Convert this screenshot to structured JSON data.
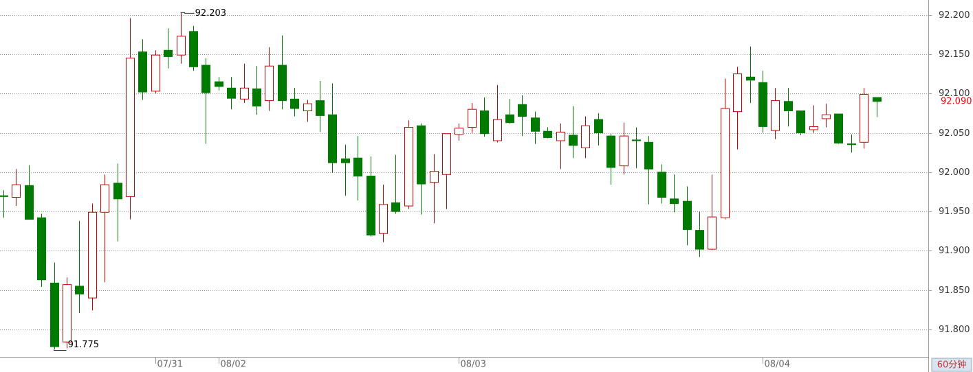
{
  "chart_data": {
    "type": "candlestick",
    "period": "60分钟",
    "categories": [
      null,
      null,
      null,
      null,
      null,
      null,
      null,
      null,
      null,
      null,
      null,
      null,
      "07/31",
      null,
      null,
      null,
      null,
      "08/02",
      null,
      null,
      null,
      null,
      null,
      null,
      null,
      null,
      null,
      null,
      null,
      null,
      null,
      null,
      null,
      null,
      null,
      null,
      "08/03",
      null,
      null,
      null,
      null,
      null,
      null,
      null,
      null,
      null,
      null,
      null,
      null,
      null,
      null,
      null,
      null,
      null,
      null,
      null,
      null,
      null,
      null,
      null,
      "08/04",
      null,
      null,
      null,
      null,
      null,
      null,
      null,
      null,
      null
    ],
    "open": [
      91.97,
      91.968,
      91.983,
      91.942,
      91.859,
      91.784,
      91.855,
      91.84,
      91.949,
      91.986,
      91.969,
      92.153,
      92.103,
      92.155,
      92.149,
      92.179,
      92.136,
      92.115,
      92.107,
      92.093,
      92.106,
      92.091,
      92.136,
      92.093,
      92.078,
      92.091,
      92.073,
      92.017,
      92.018,
      91.995,
      91.922,
      91.961,
      91.957,
      92.059,
      91.987,
      91.997,
      92.048,
      92.057,
      92.078,
      92.04,
      92.073,
      92.086,
      92.069,
      92.052,
      92.04,
      92.047,
      92.031,
      92.067,
      92.046,
      92.008,
      92.041,
      92.038,
      92.0,
      91.966,
      91.963,
      91.926,
      91.902,
      91.942,
      92.077,
      92.121,
      92.114,
      92.053,
      92.09,
      92.078,
      92.054,
      92.068,
      92.074,
      92.036,
      92.038,
      92.095
    ],
    "high": [
      91.977,
      92.004,
      92.009,
      91.947,
      91.885,
      91.866,
      91.938,
      91.96,
      91.997,
      92.011,
      92.196,
      92.169,
      92.155,
      92.183,
      92.203,
      92.186,
      92.145,
      92.121,
      92.121,
      92.138,
      92.135,
      92.159,
      92.174,
      92.107,
      92.092,
      92.116,
      92.113,
      92.035,
      92.046,
      92.02,
      91.984,
      92.022,
      92.066,
      92.062,
      92.023,
      92.049,
      92.062,
      92.088,
      92.095,
      92.111,
      92.093,
      92.098,
      92.077,
      92.057,
      92.062,
      92.084,
      92.071,
      92.075,
      92.049,
      92.063,
      92.057,
      92.046,
      92.01,
      91.997,
      91.982,
      91.95,
      91.997,
      92.119,
      92.134,
      92.16,
      92.129,
      92.107,
      92.107,
      92.078,
      92.085,
      92.087,
      92.074,
      92.048,
      92.107,
      92.095
    ],
    "low": [
      91.942,
      91.957,
      91.94,
      91.854,
      91.775,
      91.776,
      91.821,
      91.824,
      91.86,
      91.912,
      91.94,
      92.092,
      92.1,
      92.132,
      92.138,
      92.129,
      92.036,
      92.104,
      92.08,
      92.088,
      92.073,
      92.078,
      92.08,
      92.071,
      92.064,
      92.051,
      91.999,
      91.97,
      91.964,
      91.918,
      91.911,
      91.947,
      91.953,
      91.946,
      91.935,
      91.953,
      92.04,
      92.05,
      92.045,
      92.038,
      92.062,
      92.046,
      92.036,
      92.043,
      92.004,
      92.018,
      92.018,
      92.034,
      91.984,
      91.997,
      92.005,
      91.959,
      91.96,
      91.949,
      91.907,
      91.892,
      91.901,
      91.94,
      92.029,
      92.088,
      92.05,
      92.042,
      92.058,
      92.047,
      92.05,
      92.057,
      92.036,
      92.025,
      92.03,
      92.07
    ],
    "close": [
      91.969,
      91.984,
      91.94,
      91.863,
      91.778,
      91.857,
      91.845,
      91.949,
      91.984,
      91.966,
      92.145,
      92.102,
      92.149,
      92.147,
      92.173,
      92.134,
      92.101,
      92.109,
      92.094,
      92.107,
      92.084,
      92.135,
      92.091,
      92.081,
      92.087,
      92.072,
      92.012,
      92.012,
      91.995,
      91.92,
      91.959,
      91.95,
      92.057,
      91.985,
      92.001,
      92.049,
      92.056,
      92.08,
      92.049,
      92.067,
      92.063,
      92.071,
      92.052,
      92.044,
      92.051,
      92.034,
      92.059,
      92.05,
      92.006,
      92.046,
      92.04,
      92.004,
      91.968,
      91.96,
      91.927,
      91.902,
      91.943,
      92.081,
      92.125,
      92.117,
      92.058,
      92.091,
      92.078,
      92.05,
      92.058,
      92.073,
      92.037,
      92.035,
      92.099,
      92.09
    ],
    "up_color": "#cc0000",
    "down_color": "#007a00",
    "max_label": 92.203,
    "min_label": 91.775,
    "last_label": {
      "value": 92.09,
      "label": "92.090"
    },
    "ylim": [
      91.765,
      92.219
    ],
    "yticks": [
      {
        "value": 91.8,
        "label": "91.800"
      },
      {
        "value": 91.85,
        "label": "91.850"
      },
      {
        "value": 91.9,
        "label": "91.900"
      },
      {
        "value": 91.95,
        "label": "91.950"
      },
      {
        "value": 92.0,
        "label": "92.000"
      },
      {
        "value": 92.05,
        "label": "92.050"
      },
      {
        "value": 92.1,
        "label": "92.100"
      },
      {
        "value": 92.15,
        "label": "92.150"
      },
      {
        "value": 92.2,
        "label": "92.200"
      }
    ],
    "grid": true
  }
}
